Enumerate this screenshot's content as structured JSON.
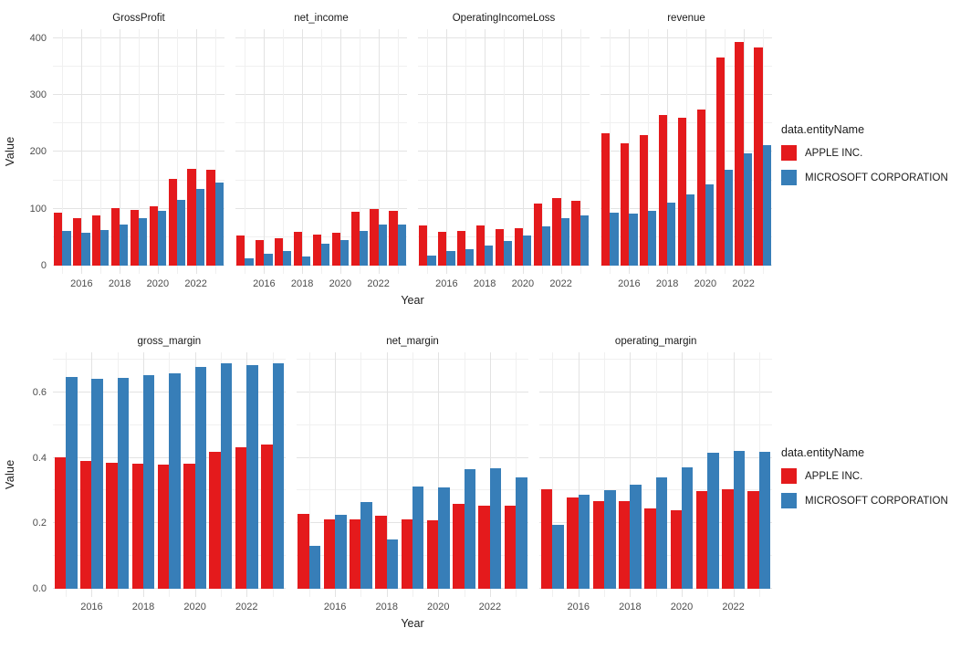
{
  "colors": {
    "apple": "#E41A1C",
    "microsoft": "#377EB8",
    "grid_major": "#E3E3E3",
    "grid_minor": "#F0F0F0",
    "axis_text": "#4D4D4D",
    "text": "#1A1A1A",
    "background": "#FFFFFF"
  },
  "legend": {
    "title": "data.entityName",
    "items": [
      {
        "label": "APPLE INC.",
        "color_key": "apple"
      },
      {
        "label": "MICROSOFT CORPORATION",
        "color_key": "microsoft"
      }
    ]
  },
  "chart_data": [
    {
      "type": "bar",
      "layout": "faceted-dodged-bars",
      "title": "",
      "xlabel": "Year",
      "ylabel": "Value",
      "x": [
        2015,
        2016,
        2017,
        2018,
        2019,
        2020,
        2021,
        2022,
        2023
      ],
      "x_ticks": [
        2016,
        2018,
        2020,
        2022
      ],
      "x_tick_labels": [
        "2016",
        "2018",
        "2020",
        "2022"
      ],
      "ylim": [
        0,
        416
      ],
      "yticks": [
        0,
        100,
        200,
        300,
        400
      ],
      "ytick_labels": [
        "0",
        "100",
        "200",
        "300",
        "400"
      ],
      "yminor": [
        50,
        150,
        250,
        350
      ],
      "grid": true,
      "legend_title": "data.entityName",
      "legend_position": "right",
      "facets": [
        {
          "title": "GrossProfit",
          "series": [
            {
              "name": "APPLE INC.",
              "color_key": "apple",
              "values": [
                93.6,
                84.3,
                88.2,
                101.8,
                98.4,
                105.0,
                152.8,
                170.8,
                169.1
              ]
            },
            {
              "name": "MICROSOFT CORPORATION",
              "color_key": "microsoft",
              "values": [
                60.5,
                58.4,
                62.3,
                72.0,
                82.9,
                96.9,
                115.9,
                135.6,
                146.1
              ]
            }
          ]
        },
        {
          "title": "net_income",
          "series": [
            {
              "name": "APPLE INC.",
              "color_key": "apple",
              "values": [
                53.4,
                45.7,
                48.4,
                59.5,
                55.3,
                57.4,
                94.7,
                99.8,
                97.0
              ]
            },
            {
              "name": "MICROSOFT CORPORATION",
              "color_key": "microsoft",
              "values": [
                12.2,
                20.5,
                25.5,
                16.6,
                39.2,
                44.3,
                61.3,
                72.7,
                72.4
              ]
            }
          ]
        },
        {
          "title": "OperatingIncomeLoss",
          "series": [
            {
              "name": "APPLE INC.",
              "color_key": "apple",
              "values": [
                71.2,
                60.0,
                61.3,
                70.9,
                63.9,
                66.3,
                109.0,
                119.4,
                114.3
              ]
            },
            {
              "name": "MICROSOFT CORPORATION",
              "color_key": "microsoft",
              "values": [
                18.2,
                26.1,
                29.0,
                35.1,
                43.0,
                53.0,
                69.9,
                83.4,
                88.5
              ]
            }
          ]
        },
        {
          "title": "revenue",
          "series": [
            {
              "name": "APPLE INC.",
              "color_key": "apple",
              "values": [
                233.7,
                215.6,
                229.2,
                265.6,
                260.2,
                274.5,
                365.8,
                394.3,
                383.3
              ]
            },
            {
              "name": "MICROSOFT CORPORATION",
              "color_key": "microsoft",
              "values": [
                93.6,
                91.2,
                96.6,
                110.4,
                125.8,
                143.0,
                168.1,
                198.3,
                211.9
              ]
            }
          ]
        }
      ]
    },
    {
      "type": "bar",
      "layout": "faceted-dodged-bars",
      "title": "",
      "xlabel": "Year",
      "ylabel": "Value",
      "x": [
        2015,
        2016,
        2017,
        2018,
        2019,
        2020,
        2021,
        2022,
        2023
      ],
      "x_ticks": [
        2016,
        2018,
        2020,
        2022
      ],
      "x_tick_labels": [
        "2016",
        "2018",
        "2020",
        "2022"
      ],
      "ylim": [
        0,
        0.722
      ],
      "yticks": [
        0,
        0.2,
        0.4,
        0.6
      ],
      "ytick_labels": [
        "0.0",
        "0.2",
        "0.4",
        "0.6"
      ],
      "yminor": [
        0.1,
        0.3,
        0.5,
        0.7
      ],
      "grid": true,
      "legend_title": "data.entityName",
      "legend_position": "right",
      "facets": [
        {
          "title": "gross_margin",
          "series": [
            {
              "name": "APPLE INC.",
              "color_key": "apple",
              "values": [
                0.401,
                0.391,
                0.385,
                0.383,
                0.378,
                0.382,
                0.418,
                0.433,
                0.441
              ]
            },
            {
              "name": "MICROSOFT CORPORATION",
              "color_key": "microsoft",
              "values": [
                0.647,
                0.64,
                0.645,
                0.652,
                0.659,
                0.678,
                0.689,
                0.684,
                0.689
              ]
            }
          ]
        },
        {
          "title": "net_margin",
          "series": [
            {
              "name": "APPLE INC.",
              "color_key": "apple",
              "values": [
                0.228,
                0.212,
                0.211,
                0.224,
                0.212,
                0.209,
                0.259,
                0.253,
                0.253
              ]
            },
            {
              "name": "MICROSOFT CORPORATION",
              "color_key": "microsoft",
              "values": [
                0.13,
                0.225,
                0.264,
                0.15,
                0.312,
                0.31,
                0.365,
                0.367,
                0.341
              ]
            }
          ]
        },
        {
          "title": "operating_margin",
          "series": [
            {
              "name": "APPLE INC.",
              "color_key": "apple",
              "values": [
                0.305,
                0.278,
                0.268,
                0.267,
                0.246,
                0.241,
                0.298,
                0.303,
                0.298
              ]
            },
            {
              "name": "MICROSOFT CORPORATION",
              "color_key": "microsoft",
              "values": [
                0.194,
                0.286,
                0.301,
                0.318,
                0.341,
                0.37,
                0.416,
                0.421,
                0.418
              ]
            }
          ]
        }
      ]
    }
  ]
}
